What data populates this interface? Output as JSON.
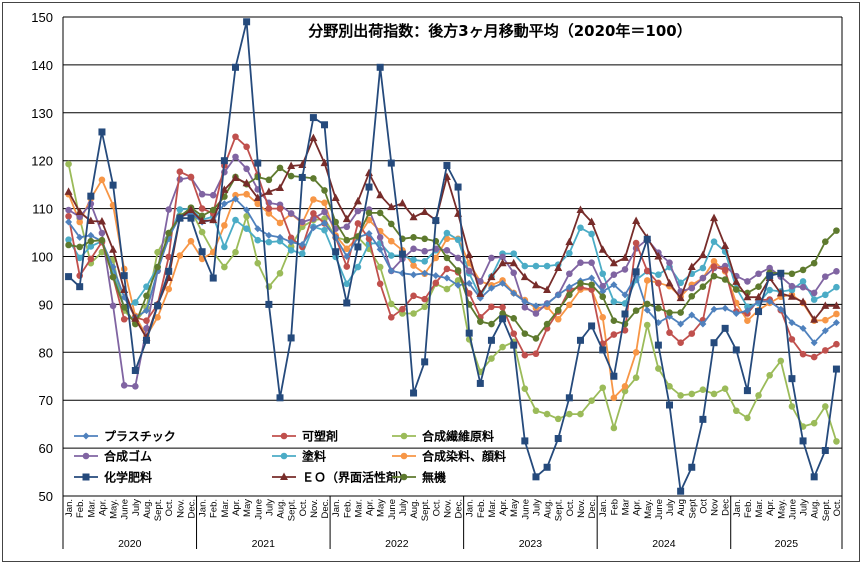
{
  "chart_data": {
    "type": "line",
    "title": "分野別出荷指数：後方3ヶ月移動平均（2020年＝100）",
    "xlabel": "",
    "ylabel": "",
    "ylim": [
      50,
      150
    ],
    "yticks": [
      50,
      60,
      70,
      80,
      90,
      100,
      110,
      120,
      130,
      140,
      150
    ],
    "grid": "horizontal",
    "legend": "bottom-left inside",
    "years": [
      {
        "label": "2020",
        "months": [
          "Jan.",
          "Feb.",
          "Mar.",
          "Apr.",
          "May.",
          "June",
          "July",
          "Aug.",
          "Sept.",
          "Oct.",
          "Nov.",
          "Dec."
        ]
      },
      {
        "label": "2021",
        "months": [
          "Jan.",
          "Feb.",
          "Mar.",
          "Apr.",
          "May",
          "June",
          "July",
          "Aug.",
          "Sept.",
          "Oct.",
          "Nov.",
          "Dec."
        ]
      },
      {
        "label": "2022",
        "months": [
          "Jan.",
          "Feb.",
          "Mar.",
          "Apr.",
          "May",
          "June",
          "July",
          "Aug.",
          "Sept.",
          "Oct.",
          "Nov.",
          "Dec."
        ]
      },
      {
        "label": "2023",
        "months": [
          "Jan.",
          "Feb.",
          "Mar.",
          "Apr.",
          "May",
          "June",
          "July",
          "Aug.",
          "Sept.",
          "Oct.",
          "Nov.",
          "Dec."
        ]
      },
      {
        "label": "2024",
        "months": [
          "Jan.",
          "Feb",
          "Mar",
          "Apr.",
          "May.",
          "June",
          "July",
          "Aug",
          "Sept",
          "Oct",
          "Nov",
          "Dec"
        ]
      },
      {
        "label": "2025",
        "months": [
          "Jan.",
          "Feb.",
          "Mar.",
          "Apr.",
          "May.",
          "June",
          "July",
          "Aug.",
          "Sept.",
          "Oct."
        ]
      }
    ],
    "series": [
      {
        "name": "プラスチック",
        "color": "#4f81bd",
        "marker": "diamond",
        "values": [
          107.2,
          104,
          104.4,
          103.2,
          97.8,
          91.5,
          87.3,
          88.7,
          97,
          104,
          108.3,
          109,
          107.2,
          107.6,
          111,
          112,
          109.7,
          105.8,
          104.4,
          104,
          103,
          102.5,
          106,
          107,
          104,
          100,
          104,
          104.8,
          101.5,
          97,
          96.5,
          96.2,
          96.5,
          96,
          95.5,
          94,
          94.4,
          91.3,
          93.4,
          94.4,
          92.3,
          90.6,
          89.7,
          90.1,
          92,
          93.6,
          94.9,
          95.5,
          92.7,
          94.1,
          92,
          95.9,
          88.8,
          86.2,
          87.5,
          85.9,
          87.8,
          85.9,
          89,
          89.2,
          88.1,
          88.7,
          90.6,
          90.6,
          89,
          86.2,
          85,
          82,
          84.5,
          86.2
        ]
      },
      {
        "name": "可塑剤",
        "color": "#c0504d",
        "marker": "circle",
        "values": [
          108.4,
          96,
          99.5,
          103,
          95.7,
          86.9,
          87.3,
          86.6,
          90,
          99.9,
          117.7,
          116.6,
          110,
          109,
          119,
          125,
          122.9,
          117,
          110,
          110,
          103.9,
          102,
          109,
          106.9,
          104,
          97.9,
          106.9,
          103.7,
          94.3,
          87.3,
          89,
          91.8,
          91.1,
          94.5,
          97.4,
          96.7,
          92.3,
          87.3,
          89.5,
          89.4,
          83.9,
          79.4,
          79.7,
          85,
          88.5,
          93.1,
          93.6,
          93.1,
          81.8,
          83.7,
          84.6,
          102.8,
          97,
          94.4,
          84.1,
          82,
          83.9,
          86.7,
          97.9,
          97.2,
          88.5,
          88.1,
          90.9,
          91,
          88.8,
          82.7,
          79.6,
          79,
          80.4,
          81.7
        ]
      },
      {
        "name": "合成繊維原料",
        "color": "#9bbb59",
        "marker": "circle",
        "values": [
          119.3,
          108,
          98.6,
          100.9,
          99.3,
          88.7,
          86.2,
          89.4,
          100.9,
          104.9,
          108.6,
          109.7,
          105.1,
          100.9,
          97.8,
          100.9,
          108.4,
          98.6,
          93.7,
          96.5,
          102.1,
          106.2,
          107.6,
          107.9,
          104,
          103.4,
          104,
          101.6,
          97.8,
          90.1,
          88.1,
          88.1,
          89.5,
          94.3,
          93.2,
          95,
          82.7,
          75.9,
          78.7,
          81.1,
          82.2,
          72.4,
          67.8,
          67.1,
          66.1,
          67.1,
          67.1,
          69.9,
          72.6,
          64.2,
          71.9,
          74.7,
          85.7,
          76.6,
          72.9,
          71,
          71.3,
          72.2,
          71.3,
          72.4,
          67.8,
          66.3,
          71,
          75.2,
          78.2,
          68.7,
          64.5,
          65.2,
          68.7,
          61.4
        ]
      },
      {
        "name": "合成ゴム",
        "color": "#8064a2",
        "marker": "circle",
        "values": [
          109.7,
          108.3,
          111,
          104.9,
          89.7,
          73.1,
          72.9,
          85,
          97,
          109.8,
          116.1,
          116.5,
          113,
          112.8,
          117.6,
          120.8,
          118.3,
          114,
          111.2,
          110.8,
          109,
          107.2,
          107.9,
          109.3,
          105.8,
          106.2,
          109.5,
          109.8,
          104,
          97,
          99.5,
          101.6,
          101.1,
          101.6,
          101.3,
          99.7,
          97,
          94.8,
          99.7,
          99.9,
          96.6,
          89.4,
          88.1,
          90.2,
          92,
          96.4,
          98.7,
          98.7,
          93.8,
          96.2,
          97.3,
          101.7,
          103.6,
          100.8,
          98.7,
          92.7,
          93.4,
          95.5,
          97.6,
          98,
          95.9,
          94.8,
          96.4,
          97.6,
          95.8,
          93.8,
          93.6,
          92.4,
          95.8,
          96.9
        ]
      },
      {
        "name": "塗料",
        "color": "#4bacc6",
        "marker": "circle",
        "values": [
          103.5,
          99.7,
          102.1,
          103.2,
          96.7,
          89.4,
          90.4,
          93.7,
          97.8,
          103.7,
          109.8,
          110,
          107.7,
          108.3,
          102,
          107.6,
          105.8,
          103.4,
          103,
          103.2,
          101.3,
          100.6,
          106.2,
          105.5,
          99.9,
          94.3,
          97.8,
          102.7,
          102.8,
          100.2,
          100.2,
          99.3,
          99,
          101.3,
          104.9,
          103.5,
          96.5,
          91.6,
          95.8,
          100.6,
          100.6,
          98,
          98,
          98,
          98.3,
          100.7,
          106,
          104.7,
          96.4,
          90.6,
          90.2,
          95.1,
          96.9,
          96.2,
          97.8,
          94.5,
          96.4,
          97.6,
          103.1,
          101,
          93.4,
          89.5,
          90.3,
          93,
          92.7,
          93,
          94.8,
          91,
          92,
          93.6
        ]
      },
      {
        "name": "合成染料、顔料",
        "color": "#f79646",
        "marker": "circle",
        "values": [
          113,
          107.2,
          112.1,
          116,
          110.7,
          97.4,
          87.6,
          83.4,
          87.3,
          93.2,
          100.2,
          103.2,
          99.5,
          100.9,
          106.5,
          112.8,
          113,
          111,
          109,
          107,
          108.9,
          107,
          111.9,
          111.2,
          104.4,
          101.6,
          104,
          107.6,
          105.3,
          103.2,
          101.3,
          98.1,
          96.4,
          99.7,
          103.7,
          103.7,
          98.6,
          94.8,
          94,
          95,
          92.4,
          90.9,
          89.2,
          89.5,
          86.9,
          89.9,
          93.1,
          93.1,
          87.3,
          70.5,
          72.9,
          80,
          95,
          94.5,
          93.8,
          91.6,
          94.1,
          95.5,
          99,
          96.9,
          90.3,
          86.6,
          88.8,
          90.3,
          91.6,
          92,
          90.3,
          86.6,
          86.7,
          88
        ]
      },
      {
        "name": "化学肥料",
        "color": "#254a7c",
        "marker": "square",
        "values": [
          95.8,
          93.7,
          112.6,
          126,
          114.9,
          96,
          76.2,
          82.5,
          89.7,
          96.9,
          108,
          108,
          101,
          95.5,
          120,
          139.5,
          149,
          119.5,
          90,
          70.5,
          83,
          116.5,
          129,
          127.5,
          101,
          90.3,
          102,
          114.5,
          139.5,
          119.5,
          100.5,
          71.5,
          78,
          107.5,
          119,
          114.5,
          84,
          73.5,
          82.5,
          87,
          81.5,
          61.5,
          54,
          56,
          62,
          70.5,
          82.5,
          85.5,
          80.5,
          75,
          88,
          96.8,
          103.6,
          81.5,
          69,
          51,
          56,
          66,
          82,
          85,
          80.5,
          72,
          88.5,
          96,
          96.5,
          74.5,
          61.5,
          54,
          59.5,
          76.5
        ]
      },
      {
        "name": "ＥＯ（界面活性剤）",
        "color": "#772c2a",
        "marker": "triangle",
        "values": [
          113.5,
          109.3,
          107.4,
          107.3,
          101.4,
          93,
          87,
          83,
          89.9,
          95.5,
          108,
          109.7,
          107.4,
          107.6,
          113.9,
          116.4,
          115.3,
          112.2,
          113.5,
          114.3,
          118.9,
          119.1,
          124.7,
          119.5,
          112.2,
          107.8,
          111.5,
          117.4,
          112.8,
          110.3,
          111.1,
          108.2,
          109.3,
          107.6,
          116.6,
          108.9,
          100.3,
          92.2,
          95.7,
          98.6,
          98.6,
          95.7,
          94,
          93,
          97.6,
          103,
          109.7,
          107.2,
          101.4,
          98.6,
          99.7,
          107.4,
          103.9,
          100,
          94.4,
          91.3,
          97.8,
          100.3,
          108,
          102.2,
          94.7,
          91.5,
          91.5,
          95.5,
          92.3,
          91.6,
          90.5,
          86.8,
          89.7,
          89.7
        ]
      },
      {
        "name": "無機",
        "color": "#5e7a2e",
        "marker": "circle",
        "values": [
          102.4,
          102,
          103.2,
          103.4,
          95.7,
          89.4,
          85.9,
          91.8,
          97.8,
          104.9,
          108.3,
          110.2,
          108.5,
          109.7,
          112.5,
          116.6,
          115.1,
          116.6,
          116,
          118.5,
          116.8,
          116.6,
          116.3,
          113.8,
          107.2,
          103.4,
          104.2,
          109.1,
          109.1,
          106.8,
          103.7,
          104,
          103.7,
          103.2,
          99.7,
          97.1,
          90,
          86.4,
          85.9,
          88.1,
          87.1,
          83.9,
          82.9,
          85.9,
          88.8,
          92,
          94.4,
          94.1,
          91.6,
          86.6,
          85.9,
          88.7,
          90.1,
          89.2,
          88.3,
          88.3,
          91.7,
          93.7,
          95.9,
          95.2,
          93.1,
          92.4,
          93.7,
          96.6,
          96.5,
          96.4,
          97.2,
          98.6,
          103.1,
          105.4
        ]
      }
    ]
  }
}
